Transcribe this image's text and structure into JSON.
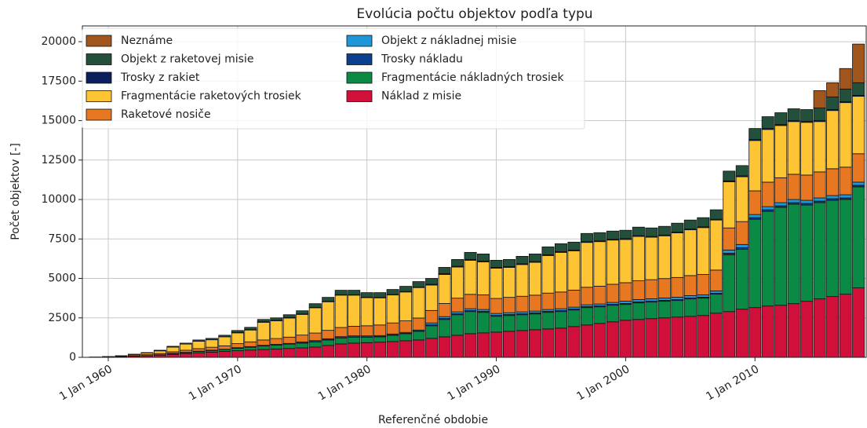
{
  "chart_data": {
    "type": "stacked_bar",
    "title": "Evolúcia počtu objektov podľa typu",
    "x_label": "Referenčné obdobie",
    "y_label": "Počet objektov  [-]",
    "x": [
      1959,
      1960,
      1961,
      1962,
      1963,
      1964,
      1965,
      1966,
      1967,
      1968,
      1969,
      1970,
      1971,
      1972,
      1973,
      1974,
      1975,
      1976,
      1977,
      1978,
      1979,
      1980,
      1981,
      1982,
      1983,
      1984,
      1985,
      1986,
      1987,
      1988,
      1989,
      1990,
      1991,
      1992,
      1993,
      1994,
      1995,
      1996,
      1997,
      1998,
      1999,
      2000,
      2001,
      2002,
      2003,
      2004,
      2005,
      2006,
      2007,
      2008,
      2009,
      2010,
      2011,
      2012,
      2013,
      2014,
      2015,
      2016,
      2017,
      2018
    ],
    "xlim": [
      1958,
      2018.6
    ],
    "xticks": [
      {
        "value": 1960,
        "label": "1 Jan 1960"
      },
      {
        "value": 1970,
        "label": "1 Jan 1970"
      },
      {
        "value": 1980,
        "label": "1 Jan 1980"
      },
      {
        "value": 1990,
        "label": "1 Jan 1990"
      },
      {
        "value": 2000,
        "label": "1 Jan 2000"
      },
      {
        "value": 2010,
        "label": "1 Jan 2010"
      }
    ],
    "ylim": [
      0,
      21000
    ],
    "yticks": [
      0,
      2500,
      5000,
      7500,
      10000,
      12500,
      15000,
      17500,
      20000
    ],
    "grid": true,
    "legend": "upper left",
    "series": [
      {
        "name": "Náklad z misie",
        "color": "#d0103a",
        "values": [
          10,
          20,
          40,
          70,
          100,
          140,
          190,
          240,
          290,
          330,
          370,
          420,
          460,
          500,
          530,
          560,
          600,
          650,
          750,
          850,
          900,
          930,
          960,
          1000,
          1050,
          1100,
          1200,
          1300,
          1400,
          1500,
          1550,
          1600,
          1650,
          1700,
          1750,
          1800,
          1850,
          1950,
          2050,
          2150,
          2250,
          2350,
          2400,
          2450,
          2500,
          2550,
          2600,
          2650,
          2800,
          2900,
          3050,
          3150,
          3250,
          3300,
          3400,
          3550,
          3700,
          3850,
          4000,
          4400
        ]
      },
      {
        "name": "Fragmentácie nákladných trosiek",
        "color": "#0a8a44",
        "values": [
          0,
          0,
          0,
          0,
          10,
          20,
          40,
          60,
          80,
          100,
          120,
          150,
          180,
          220,
          250,
          280,
          300,
          330,
          350,
          380,
          380,
          350,
          340,
          400,
          450,
          550,
          800,
          1100,
          1300,
          1400,
          1300,
          1000,
          1000,
          1000,
          1000,
          1050,
          1050,
          1050,
          1100,
          1050,
          1050,
          1000,
          1050,
          1050,
          1050,
          1050,
          1100,
          1100,
          1200,
          3600,
          3800,
          5600,
          6000,
          6200,
          6300,
          6100,
          6100,
          6100,
          6000,
          6400
        ]
      },
      {
        "name": "Trosky nákladu",
        "color": "#0b3f8f",
        "values": [
          0,
          0,
          0,
          0,
          0,
          0,
          0,
          0,
          0,
          0,
          0,
          20,
          20,
          20,
          20,
          20,
          20,
          20,
          20,
          20,
          20,
          20,
          20,
          20,
          20,
          20,
          60,
          60,
          60,
          60,
          60,
          60,
          60,
          60,
          60,
          60,
          60,
          60,
          60,
          60,
          60,
          60,
          60,
          60,
          60,
          60,
          60,
          60,
          60,
          100,
          100,
          100,
          100,
          100,
          100,
          100,
          100,
          100,
          100,
          100
        ]
      },
      {
        "name": "Objekt z nákladnej misie",
        "color": "#1f96d8",
        "values": [
          0,
          0,
          0,
          0,
          0,
          0,
          20,
          20,
          20,
          20,
          20,
          20,
          20,
          20,
          20,
          20,
          60,
          60,
          60,
          60,
          60,
          60,
          60,
          60,
          60,
          60,
          120,
          120,
          120,
          120,
          120,
          120,
          120,
          120,
          120,
          120,
          120,
          120,
          120,
          120,
          120,
          150,
          150,
          150,
          150,
          150,
          150,
          150,
          150,
          200,
          200,
          200,
          200,
          200,
          200,
          200,
          200,
          200,
          200,
          200
        ]
      },
      {
        "name": "Raketové nosiče",
        "color": "#e87722",
        "values": [
          0,
          10,
          20,
          40,
          60,
          80,
          100,
          130,
          160,
          190,
          220,
          260,
          300,
          340,
          370,
          400,
          430,
          480,
          530,
          580,
          610,
          640,
          670,
          700,
          730,
          760,
          790,
          830,
          870,
          910,
          930,
          950,
          970,
          990,
          1010,
          1040,
          1060,
          1080,
          1110,
          1130,
          1150,
          1170,
          1190,
          1210,
          1230,
          1250,
          1270,
          1290,
          1320,
          1400,
          1450,
          1500,
          1550,
          1580,
          1600,
          1600,
          1650,
          1700,
          1750,
          1800
        ]
      },
      {
        "name": "Fragmentácie raketových trosiek",
        "color": "#fdc533",
        "values": [
          10,
          10,
          30,
          70,
          100,
          170,
          300,
          390,
          470,
          470,
          570,
          680,
          750,
          1120,
          1120,
          1210,
          1310,
          1600,
          1810,
          2050,
          1970,
          1780,
          1720,
          1770,
          1830,
          1930,
          1610,
          1840,
          1970,
          2160,
          2090,
          1920,
          1900,
          2010,
          2080,
          2380,
          2510,
          2490,
          2840,
          2820,
          2800,
          2740,
          2810,
          2690,
          2710,
          2830,
          2900,
          2970,
          3170,
          2920,
          2840,
          3190,
          3340,
          3310,
          3340,
          3340,
          3190,
          3690,
          4090,
          3640
        ]
      },
      {
        "name": "Trosky z rakiet",
        "color": "#0a1f5c",
        "values": [
          0,
          0,
          0,
          0,
          0,
          0,
          0,
          0,
          0,
          0,
          0,
          30,
          30,
          30,
          30,
          30,
          30,
          30,
          30,
          30,
          30,
          30,
          30,
          30,
          30,
          30,
          50,
          50,
          50,
          50,
          50,
          50,
          50,
          50,
          50,
          50,
          50,
          50,
          50,
          50,
          50,
          50,
          50,
          50,
          50,
          50,
          50,
          50,
          50,
          60,
          60,
          60,
          60,
          60,
          60,
          60,
          60,
          60,
          60,
          60
        ]
      },
      {
        "name": "Objekt z raketovej misie",
        "color": "#22503a",
        "values": [
          0,
          10,
          10,
          20,
          30,
          40,
          50,
          60,
          80,
          90,
          100,
          120,
          140,
          150,
          160,
          180,
          200,
          230,
          250,
          280,
          280,
          290,
          300,
          320,
          330,
          350,
          370,
          400,
          430,
          450,
          450,
          450,
          450,
          470,
          480,
          500,
          500,
          500,
          520,
          520,
          520,
          530,
          540,
          540,
          550,
          560,
          570,
          580,
          600,
          620,
          650,
          700,
          750,
          750,
          750,
          750,
          800,
          800,
          800,
          800
        ]
      },
      {
        "name": "Neznáme",
        "color": "#a0561c",
        "values": [
          0,
          0,
          0,
          0,
          0,
          0,
          0,
          0,
          0,
          0,
          0,
          0,
          0,
          0,
          0,
          0,
          0,
          0,
          0,
          0,
          0,
          0,
          0,
          0,
          0,
          0,
          0,
          0,
          0,
          0,
          0,
          0,
          0,
          0,
          0,
          0,
          0,
          0,
          0,
          0,
          0,
          0,
          0,
          0,
          0,
          0,
          0,
          0,
          0,
          0,
          0,
          0,
          0,
          0,
          0,
          0,
          1100,
          900,
          1300,
          2450
        ]
      }
    ]
  }
}
